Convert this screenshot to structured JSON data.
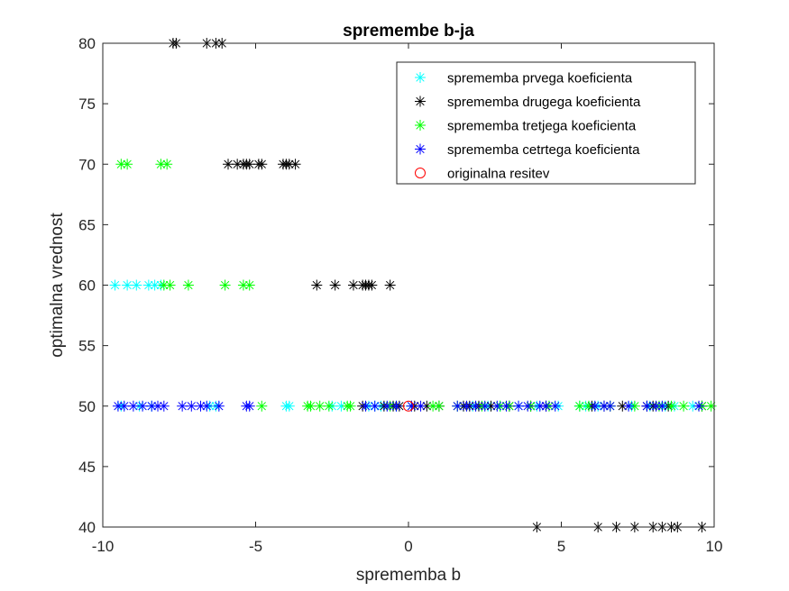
{
  "chart_data": {
    "type": "scatter",
    "title": "spremembe b-ja",
    "xlabel": "sprememba b",
    "ylabel": "optimalna vrednost",
    "xlim": [
      -10,
      10
    ],
    "ylim": [
      40,
      80
    ],
    "xticks": [
      -10,
      -5,
      0,
      5,
      10
    ],
    "yticks": [
      40,
      45,
      50,
      55,
      60,
      65,
      70,
      75,
      80
    ],
    "grid": false,
    "legend_position": "top-right",
    "series": [
      {
        "name": "sprememba prvega koeficienta",
        "marker": "asterisk",
        "color": "#00ffff",
        "points": [
          [
            -9.6,
            60
          ],
          [
            -9.2,
            60
          ],
          [
            -8.9,
            60
          ],
          [
            -8.5,
            60
          ],
          [
            -8.3,
            60
          ],
          [
            -8.1,
            60
          ],
          [
            -9.4,
            50
          ],
          [
            -8.8,
            50
          ],
          [
            -8.4,
            50
          ],
          [
            -6.5,
            50
          ],
          [
            -6.3,
            50
          ],
          [
            -4.0,
            50
          ],
          [
            -3.9,
            50
          ],
          [
            -2.5,
            50
          ],
          [
            -2.2,
            50
          ],
          [
            -1.3,
            50
          ],
          [
            -1.1,
            50
          ],
          [
            -0.9,
            50
          ],
          [
            -0.4,
            50
          ],
          [
            0.1,
            50
          ],
          [
            1.8,
            50
          ],
          [
            2.1,
            50
          ],
          [
            2.6,
            50
          ],
          [
            3.0,
            50
          ],
          [
            3.6,
            50
          ],
          [
            4.2,
            50
          ],
          [
            4.9,
            50
          ],
          [
            5.6,
            50
          ],
          [
            5.8,
            50
          ],
          [
            6.2,
            50
          ],
          [
            6.4,
            50
          ],
          [
            7.3,
            50
          ],
          [
            7.9,
            50
          ],
          [
            8.4,
            50
          ],
          [
            8.7,
            50
          ],
          [
            9.3,
            50
          ]
        ]
      },
      {
        "name": "sprememba drugega koeficienta",
        "marker": "asterisk",
        "color": "#000000",
        "points": [
          [
            -7.7,
            80
          ],
          [
            -7.6,
            80
          ],
          [
            -6.6,
            80
          ],
          [
            -6.3,
            80
          ],
          [
            -6.1,
            80
          ],
          [
            -5.9,
            70
          ],
          [
            -5.6,
            70
          ],
          [
            -5.4,
            70
          ],
          [
            -5.3,
            70
          ],
          [
            -5.2,
            70
          ],
          [
            -4.9,
            70
          ],
          [
            -4.8,
            70
          ],
          [
            -4.1,
            70
          ],
          [
            -4.0,
            70
          ],
          [
            -3.9,
            70
          ],
          [
            -3.7,
            70
          ],
          [
            -3.0,
            60
          ],
          [
            -2.4,
            60
          ],
          [
            -1.8,
            60
          ],
          [
            -1.5,
            60
          ],
          [
            -1.4,
            60
          ],
          [
            -1.3,
            60
          ],
          [
            -1.2,
            60
          ],
          [
            -0.6,
            60
          ],
          [
            -1.5,
            50
          ],
          [
            -0.8,
            50
          ],
          [
            -0.5,
            50
          ],
          [
            -0.3,
            50
          ],
          [
            0.2,
            50
          ],
          [
            0.6,
            50
          ],
          [
            1.0,
            50
          ],
          [
            1.8,
            50
          ],
          [
            2.0,
            50
          ],
          [
            2.3,
            50
          ],
          [
            2.7,
            50
          ],
          [
            3.3,
            50
          ],
          [
            4.0,
            50
          ],
          [
            4.5,
            50
          ],
          [
            6.0,
            50
          ],
          [
            6.4,
            50
          ],
          [
            7.0,
            50
          ],
          [
            7.8,
            50
          ],
          [
            8.0,
            50
          ],
          [
            8.5,
            50
          ],
          [
            9.6,
            50
          ],
          [
            4.2,
            40
          ],
          [
            6.2,
            40
          ],
          [
            6.8,
            40
          ],
          [
            7.4,
            40
          ],
          [
            8.0,
            40
          ],
          [
            8.3,
            40
          ],
          [
            8.6,
            40
          ],
          [
            8.8,
            40
          ],
          [
            9.6,
            40
          ]
        ]
      },
      {
        "name": "sprememba tretjega koeficienta",
        "marker": "asterisk",
        "color": "#00ff00",
        "points": [
          [
            -9.4,
            70
          ],
          [
            -9.2,
            70
          ],
          [
            -8.1,
            70
          ],
          [
            -7.9,
            70
          ],
          [
            -8.0,
            60
          ],
          [
            -7.8,
            60
          ],
          [
            -7.2,
            60
          ],
          [
            -6.0,
            60
          ],
          [
            -5.4,
            60
          ],
          [
            -5.2,
            60
          ],
          [
            -4.8,
            50
          ],
          [
            -3.3,
            50
          ],
          [
            -3.2,
            50
          ],
          [
            -2.9,
            50
          ],
          [
            -2.6,
            50
          ],
          [
            -2.0,
            50
          ],
          [
            -1.9,
            50
          ],
          [
            -0.6,
            50
          ],
          [
            0.8,
            50
          ],
          [
            1.0,
            50
          ],
          [
            1.6,
            50
          ],
          [
            2.4,
            50
          ],
          [
            3.0,
            50
          ],
          [
            3.3,
            50
          ],
          [
            4.0,
            50
          ],
          [
            4.6,
            50
          ],
          [
            5.6,
            50
          ],
          [
            5.9,
            50
          ],
          [
            6.6,
            50
          ],
          [
            7.4,
            50
          ],
          [
            8.2,
            50
          ],
          [
            8.6,
            50
          ],
          [
            9.0,
            50
          ],
          [
            9.6,
            50
          ],
          [
            9.9,
            50
          ]
        ]
      },
      {
        "name": "sprememba cetrtega koeficienta",
        "marker": "asterisk",
        "color": "#0000ff",
        "points": [
          [
            -9.5,
            50
          ],
          [
            -9.3,
            50
          ],
          [
            -9.0,
            50
          ],
          [
            -8.7,
            50
          ],
          [
            -8.4,
            50
          ],
          [
            -8.2,
            50
          ],
          [
            -8.0,
            50
          ],
          [
            -7.4,
            50
          ],
          [
            -7.1,
            50
          ],
          [
            -6.8,
            50
          ],
          [
            -6.6,
            50
          ],
          [
            -6.2,
            50
          ],
          [
            -5.3,
            50
          ],
          [
            -5.2,
            50
          ],
          [
            -1.4,
            50
          ],
          [
            -1.1,
            50
          ],
          [
            -0.7,
            50
          ],
          [
            -0.4,
            50
          ],
          [
            0.1,
            50
          ],
          [
            0.4,
            50
          ],
          [
            1.6,
            50
          ],
          [
            1.9,
            50
          ],
          [
            2.2,
            50
          ],
          [
            2.5,
            50
          ],
          [
            2.9,
            50
          ],
          [
            3.2,
            50
          ],
          [
            3.6,
            50
          ],
          [
            3.9,
            50
          ],
          [
            4.3,
            50
          ],
          [
            4.5,
            50
          ],
          [
            4.8,
            50
          ],
          [
            6.1,
            50
          ],
          [
            6.4,
            50
          ],
          [
            6.6,
            50
          ],
          [
            7.2,
            50
          ],
          [
            7.8,
            50
          ],
          [
            8.1,
            50
          ],
          [
            8.3,
            50
          ],
          [
            9.5,
            50
          ]
        ]
      },
      {
        "name": "originalna resitev",
        "marker": "circle",
        "color": "#ff0000",
        "points": [
          [
            0,
            50
          ]
        ]
      }
    ]
  },
  "colors": {
    "axis": "#262626",
    "background": "#ffffff"
  }
}
